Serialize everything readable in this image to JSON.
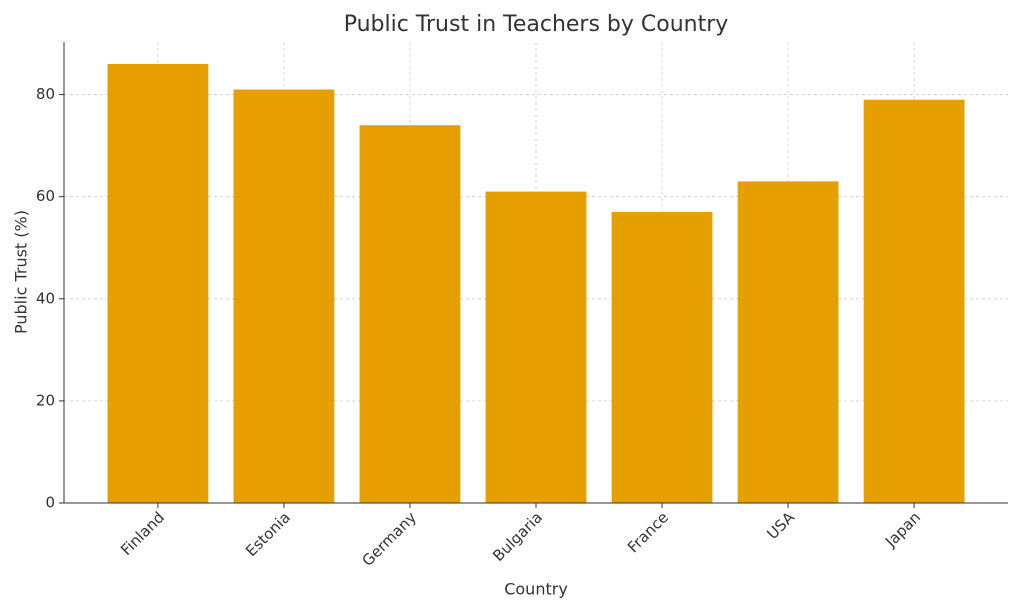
{
  "chart_data": {
    "type": "bar",
    "title": "Public Trust in Teachers by Country",
    "x_label": "Country",
    "y_label": "Public Trust (%)",
    "categories": [
      "Finland",
      "Estonia",
      "Germany",
      "Bulgaria",
      "France",
      "USA",
      "Japan"
    ],
    "values": [
      86,
      81,
      74,
      61,
      57,
      63,
      79
    ],
    "color": "#e5a000",
    "ylim": [
      0,
      90.3
    ],
    "yticks": [
      0,
      20,
      40,
      60,
      80
    ],
    "grid": true
  }
}
